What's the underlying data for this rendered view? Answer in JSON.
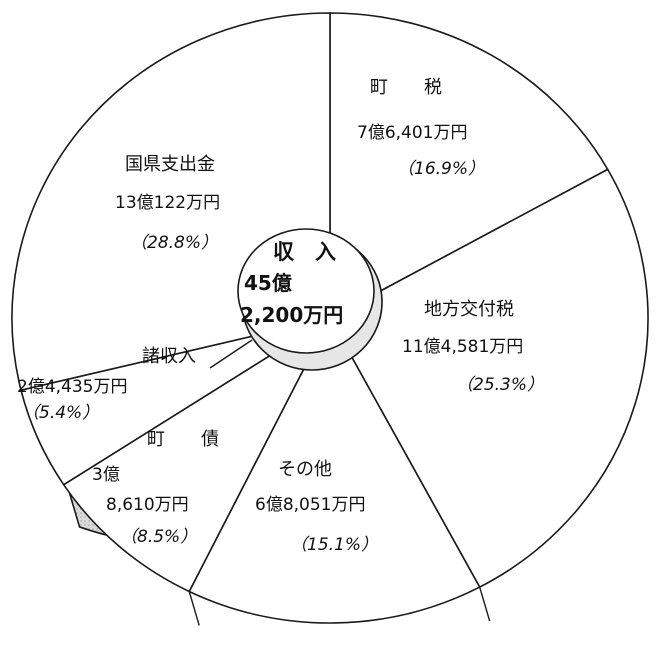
{
  "chart_data": {
    "type": "pie",
    "center_label": {
      "title": "収　入",
      "value_line1": "45億",
      "value_line2": "2,200万円"
    },
    "slices": [
      {
        "name": "町　　税",
        "amount": "7億6,401万円",
        "percent": "（16.9%）",
        "value": 16.9
      },
      {
        "name": "地方交付税",
        "amount": "11億4,581万円",
        "percent": "（25.3%）",
        "value": 25.3
      },
      {
        "name": "その他",
        "amount": "6億8,051万円",
        "percent": "（15.1%）",
        "value": 15.1
      },
      {
        "name": "町　　債",
        "amount_line1": "3億",
        "amount_line2": "8,610万円",
        "percent": "（8.5%）",
        "value": 8.5
      },
      {
        "name": "諸収入",
        "amount": "2億4,435万円",
        "percent": "（5.4%）",
        "value": 5.4
      },
      {
        "name": "国県支出金",
        "amount": "13億122万円",
        "percent": "（28.8%）",
        "value": 28.8
      }
    ],
    "colors": {
      "slice_fill": "#ffffff",
      "side_fill": "#d4d4d4",
      "line": "#1a1a1a"
    }
  }
}
